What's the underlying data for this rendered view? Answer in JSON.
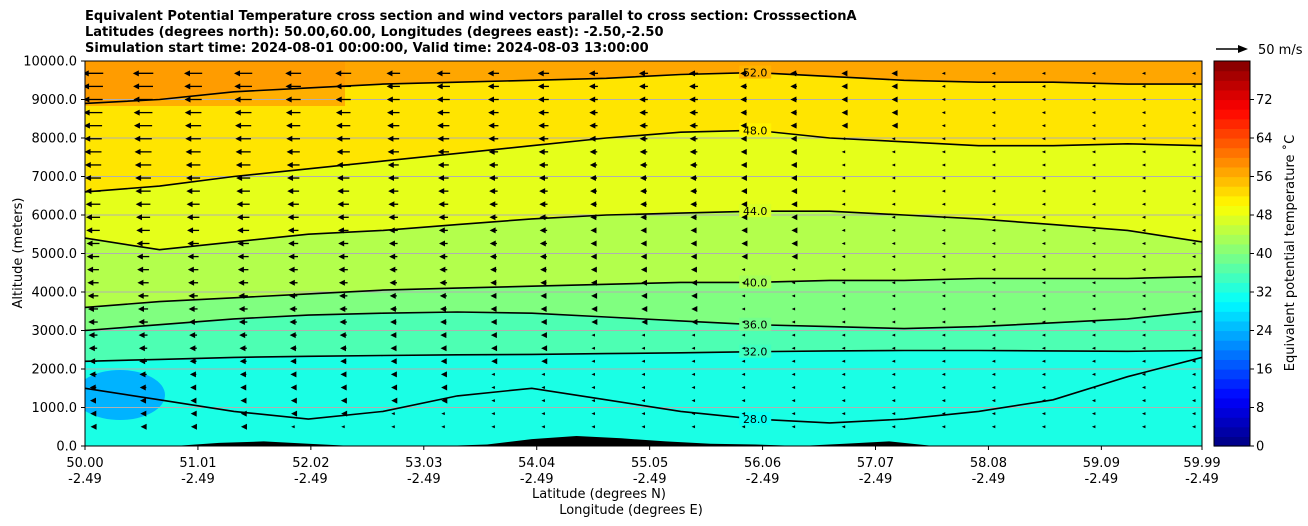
{
  "chart_data": {
    "type": "heatmap",
    "title_lines": [
      "Equivalent Potential Temperature cross section and wind vectors parallel to cross section: CrosssectionA",
      "Latitudes (degrees north): 50.00,60.00, Longitudes (degrees east): -2.50,-2.50",
      "Simulation start time: 2024-08-01 00:00:00, Valid time: 2024-08-03 13:00:00"
    ],
    "ylabel": "Altitude (meters)",
    "xlabel_lines": [
      "Latitude (degrees N)",
      "Longitude (degrees E)"
    ],
    "y_range": [
      0,
      10000
    ],
    "y_ticks": [
      "0.0",
      "1000.0",
      "2000.0",
      "3000.0",
      "4000.0",
      "5000.0",
      "6000.0",
      "7000.0",
      "8000.0",
      "9000.0",
      "10000.0"
    ],
    "x_range": [
      50.0,
      59.99
    ],
    "x_ticks": [
      {
        "lat": "50.00",
        "lon": "-2.49"
      },
      {
        "lat": "51.01",
        "lon": "-2.49"
      },
      {
        "lat": "52.02",
        "lon": "-2.49"
      },
      {
        "lat": "53.03",
        "lon": "-2.49"
      },
      {
        "lat": "54.04",
        "lon": "-2.49"
      },
      {
        "lat": "55.05",
        "lon": "-2.49"
      },
      {
        "lat": "56.06",
        "lon": "-2.49"
      },
      {
        "lat": "57.07",
        "lon": "-2.49"
      },
      {
        "lat": "58.08",
        "lon": "-2.49"
      },
      {
        "lat": "59.09",
        "lon": "-2.49"
      },
      {
        "lat": "59.99",
        "lon": "-2.49"
      }
    ],
    "grid": "horizontal",
    "colorbar": {
      "label": "Equivalent potential temperature ˚C",
      "range": [
        0,
        80
      ],
      "ticks": [
        "0",
        "8",
        "16",
        "24",
        "32",
        "40",
        "48",
        "56",
        "64",
        "72"
      ],
      "colormap": "jet"
    },
    "wind_key": {
      "label": "50 m/s"
    },
    "contours": [
      {
        "label": "28.0",
        "altitude_m": [
          1500,
          1200,
          900,
          700,
          900,
          1300,
          1500,
          1200,
          900,
          700,
          600,
          700,
          900,
          1200,
          1800,
          2300
        ]
      },
      {
        "label": "32.0",
        "altitude_m": [
          2200,
          2250,
          2300,
          2330,
          2350,
          2370,
          2380,
          2400,
          2420,
          2450,
          2470,
          2480,
          2480,
          2470,
          2460,
          2480
        ]
      },
      {
        "label": "36.0",
        "altitude_m": [
          3000,
          3150,
          3300,
          3400,
          3450,
          3480,
          3450,
          3350,
          3250,
          3150,
          3100,
          3050,
          3100,
          3200,
          3300,
          3500
        ]
      },
      {
        "label": "40.0",
        "altitude_m": [
          3600,
          3750,
          3850,
          3950,
          4050,
          4100,
          4150,
          4200,
          4250,
          4250,
          4300,
          4300,
          4350,
          4350,
          4350,
          4400
        ]
      },
      {
        "label": "44.0",
        "altitude_m": [
          5400,
          5100,
          5300,
          5500,
          5600,
          5750,
          5900,
          6000,
          6050,
          6100,
          6100,
          6000,
          5900,
          5750,
          5600,
          5300
        ]
      },
      {
        "label": "48.0",
        "altitude_m": [
          6600,
          6750,
          7000,
          7200,
          7400,
          7600,
          7800,
          8000,
          8150,
          8200,
          8000,
          7900,
          7800,
          7800,
          7850,
          7800
        ]
      },
      {
        "label": "52.0",
        "altitude_m": [
          8900,
          9000,
          9200,
          9300,
          9400,
          9450,
          9500,
          9550,
          9650,
          9700,
          9600,
          9500,
          9450,
          9450,
          9400,
          9400
        ]
      }
    ],
    "terrain_altitude_m": [
      0,
      0,
      0,
      80,
      120,
      60,
      0,
      0,
      0,
      40,
      180,
      260,
      200,
      120,
      60,
      40,
      0,
      60,
      120,
      0,
      0,
      0,
      0,
      0,
      0,
      0
    ],
    "wind_u_ms": [
      -18,
      -16,
      -14,
      -12,
      -10,
      -8,
      -6,
      -4,
      -3,
      -2,
      -1
    ]
  }
}
